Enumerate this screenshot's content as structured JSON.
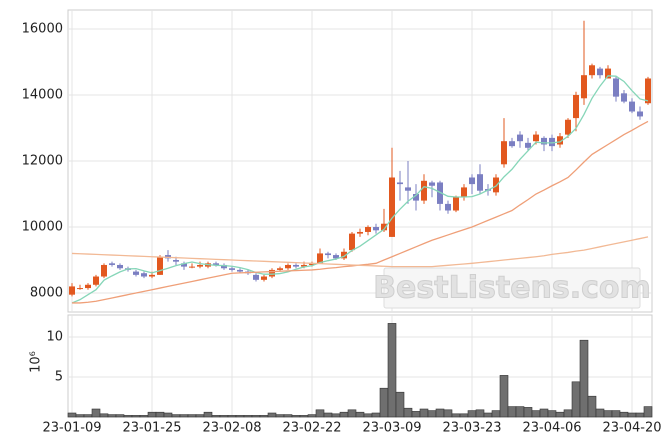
{
  "chart_data": [
    {
      "type": "candlestick",
      "categories": [
        "23-01-09",
        null,
        null,
        null,
        null,
        null,
        null,
        null,
        null,
        null,
        "23-01-25",
        null,
        null,
        null,
        null,
        null,
        null,
        null,
        null,
        null,
        "23-02-08",
        null,
        null,
        null,
        null,
        null,
        null,
        null,
        null,
        null,
        "23-02-22",
        null,
        null,
        null,
        null,
        null,
        null,
        null,
        null,
        null,
        "23-03-09",
        null,
        null,
        null,
        null,
        null,
        null,
        null,
        null,
        null,
        "23-03-23",
        null,
        null,
        null,
        null,
        null,
        null,
        null,
        null,
        null,
        "23-04-06",
        null,
        null,
        null,
        null,
        null,
        null,
        null,
        null,
        null,
        "23-04-20",
        null,
        null
      ],
      "open": [
        7950,
        8150,
        8150,
        8250,
        8500,
        8900,
        8850,
        8750,
        8650,
        8600,
        8500,
        8550,
        9150,
        9000,
        8900,
        8800,
        8800,
        8800,
        8900,
        8850,
        8750,
        8700,
        8650,
        8550,
        8400,
        8500,
        8700,
        8750,
        8850,
        8800,
        8850,
        8900,
        9200,
        9150,
        9050,
        9300,
        9800,
        9850,
        10000,
        9900,
        9700,
        11350,
        11200,
        11000,
        10800,
        11350,
        11350,
        10700,
        10500,
        10900,
        11500,
        11600,
        11150,
        11050,
        11900,
        12600,
        12800,
        12550,
        12600,
        12700,
        12700,
        12500,
        12800,
        13300,
        13900,
        14600,
        14800,
        14500,
        14500,
        14050,
        13800,
        13500,
        13750
      ],
      "high": [
        8300,
        8250,
        8300,
        8550,
        8900,
        8950,
        8900,
        8800,
        8700,
        8650,
        8650,
        9150,
        9300,
        9100,
        8950,
        8900,
        8950,
        8950,
        8950,
        8900,
        8800,
        8750,
        8700,
        8600,
        8550,
        8750,
        8800,
        8900,
        8900,
        8950,
        8950,
        9350,
        9250,
        9200,
        9350,
        9850,
        9950,
        10050,
        10100,
        10550,
        12400,
        11700,
        12000,
        11300,
        11600,
        11400,
        11400,
        10800,
        10950,
        11300,
        11600,
        11900,
        11300,
        11600,
        13300,
        12700,
        12900,
        12700,
        12900,
        12750,
        12800,
        12850,
        13300,
        14100,
        16250,
        14950,
        14850,
        14900,
        14550,
        14150,
        13900,
        13650,
        14550
      ],
      "low": [
        7900,
        8100,
        8100,
        8200,
        8450,
        8800,
        8700,
        8650,
        8500,
        8450,
        8450,
        8550,
        8950,
        8850,
        8700,
        8750,
        8750,
        8750,
        8800,
        8700,
        8650,
        8600,
        8550,
        8350,
        8350,
        8450,
        8650,
        8700,
        8750,
        8750,
        8800,
        8900,
        9050,
        9000,
        9000,
        9250,
        9700,
        9750,
        9800,
        9850,
        9700,
        10800,
        10700,
        10500,
        10700,
        10900,
        10500,
        10400,
        10450,
        10800,
        11000,
        11000,
        10950,
        10950,
        11800,
        12400,
        12400,
        12300,
        12500,
        12300,
        12300,
        12400,
        12700,
        12900,
        13700,
        14500,
        14500,
        14500,
        13800,
        13750,
        13450,
        13250,
        13700
      ],
      "close": [
        8200,
        8150,
        8250,
        8500,
        8850,
        8850,
        8750,
        8700,
        8550,
        8500,
        8550,
        9100,
        9050,
        8950,
        8800,
        8800,
        8850,
        8900,
        8850,
        8750,
        8700,
        8650,
        8600,
        8400,
        8500,
        8700,
        8750,
        8850,
        8800,
        8850,
        8900,
        9200,
        9150,
        9050,
        9250,
        9800,
        9850,
        10000,
        9900,
        10100,
        11500,
        11300,
        11100,
        10800,
        11400,
        11250,
        10700,
        10500,
        10900,
        11200,
        11300,
        11100,
        11100,
        11500,
        12600,
        12450,
        12600,
        12400,
        12800,
        12500,
        12450,
        12750,
        13250,
        14000,
        14600,
        14900,
        14600,
        14800,
        13950,
        13800,
        13500,
        13350,
        14500
      ],
      "up_color": "#e2581f",
      "down_color": "#7b7fc2",
      "series": [
        {
          "color": "#86d6b8",
          "values": [
            7700,
            7800,
            7950,
            8100,
            8390,
            8520,
            8640,
            8730,
            8740,
            8670,
            8610,
            8680,
            8750,
            8830,
            8890,
            8940,
            8890,
            8860,
            8840,
            8830,
            8810,
            8770,
            8710,
            8620,
            8570,
            8570,
            8590,
            8640,
            8720,
            8790,
            8830,
            8920,
            8980,
            9030,
            9110,
            9290,
            9420,
            9590,
            9760,
            9930,
            10270,
            10540,
            10780,
            10960,
            11220,
            11170,
            11050,
            10930,
            10910,
            10910,
            10920,
            11000,
            11120,
            11240,
            11520,
            11750,
            12050,
            12310,
            12570,
            12550,
            12550,
            12580,
            12750,
            12990,
            13410,
            13900,
            14270,
            14580,
            14570,
            14410,
            14130,
            13880,
            13820
          ]
        },
        {
          "color": "#ef9f78",
          "values": [
            7700,
            7700,
            7720,
            7750,
            7800,
            7850,
            7900,
            7950,
            8000,
            8050,
            8100,
            8150,
            8200,
            8250,
            8300,
            8350,
            8400,
            8450,
            8500,
            8550,
            8600,
            8610,
            8620,
            8630,
            8640,
            8650,
            8660,
            8670,
            8680,
            8690,
            8700,
            8720,
            8750,
            8770,
            8800,
            8820,
            8850,
            8870,
            8900,
            9000,
            9100,
            9200,
            9300,
            9400,
            9500,
            9600,
            9680,
            9760,
            9840,
            9920,
            10000,
            10100,
            10200,
            10300,
            10400,
            10500,
            10670,
            10830,
            11000,
            11120,
            11250,
            11370,
            11500,
            11730,
            11970,
            12200,
            12350,
            12500,
            12650,
            12800,
            12930,
            13070,
            13200
          ]
        },
        {
          "color": "#f2b995",
          "values": [
            9200,
            9190,
            9180,
            9170,
            9160,
            9150,
            9140,
            9130,
            9120,
            9110,
            9100,
            9090,
            9080,
            9070,
            9060,
            9050,
            9040,
            9030,
            9020,
            9010,
            9000,
            8990,
            8980,
            8970,
            8960,
            8950,
            8940,
            8930,
            8920,
            8910,
            8900,
            8890,
            8880,
            8870,
            8860,
            8850,
            8840,
            8830,
            8820,
            8810,
            8800,
            8800,
            8800,
            8800,
            8800,
            8800,
            8820,
            8840,
            8860,
            8880,
            8900,
            8925,
            8950,
            8975,
            9000,
            9025,
            9050,
            9075,
            9100,
            9130,
            9170,
            9200,
            9230,
            9270,
            9300,
            9350,
            9400,
            9450,
            9500,
            9550,
            9600,
            9650,
            9700
          ]
        }
      ],
      "ylim": [
        7425,
        16575
      ],
      "yticks": [
        8000,
        10000,
        12000,
        14000,
        16000
      ],
      "grid": true,
      "watermark": "BestListens.com"
    },
    {
      "type": "bar",
      "values": [
        0.5,
        0.3,
        0.3,
        1.0,
        0.4,
        0.3,
        0.3,
        0.2,
        0.2,
        0.2,
        0.6,
        0.6,
        0.5,
        0.3,
        0.3,
        0.3,
        0.3,
        0.6,
        0.2,
        0.2,
        0.2,
        0.2,
        0.2,
        0.2,
        0.2,
        0.5,
        0.3,
        0.3,
        0.2,
        0.2,
        0.3,
        0.9,
        0.5,
        0.4,
        0.6,
        0.9,
        0.6,
        0.4,
        0.5,
        3.6,
        11.7,
        3.1,
        1.1,
        0.7,
        1.0,
        0.8,
        1.0,
        0.9,
        0.4,
        0.4,
        0.8,
        0.9,
        0.5,
        0.8,
        5.2,
        1.3,
        1.3,
        1.2,
        0.8,
        1.0,
        0.8,
        0.6,
        0.9,
        4.4,
        9.6,
        2.6,
        1.0,
        0.8,
        0.8,
        0.6,
        0.5,
        0.5,
        1.3
      ],
      "color": "#6f6f6f",
      "ylim": [
        0,
        12.75
      ],
      "yticks": [
        5,
        10
      ],
      "ylabel": "10⁶",
      "grid": true
    }
  ]
}
